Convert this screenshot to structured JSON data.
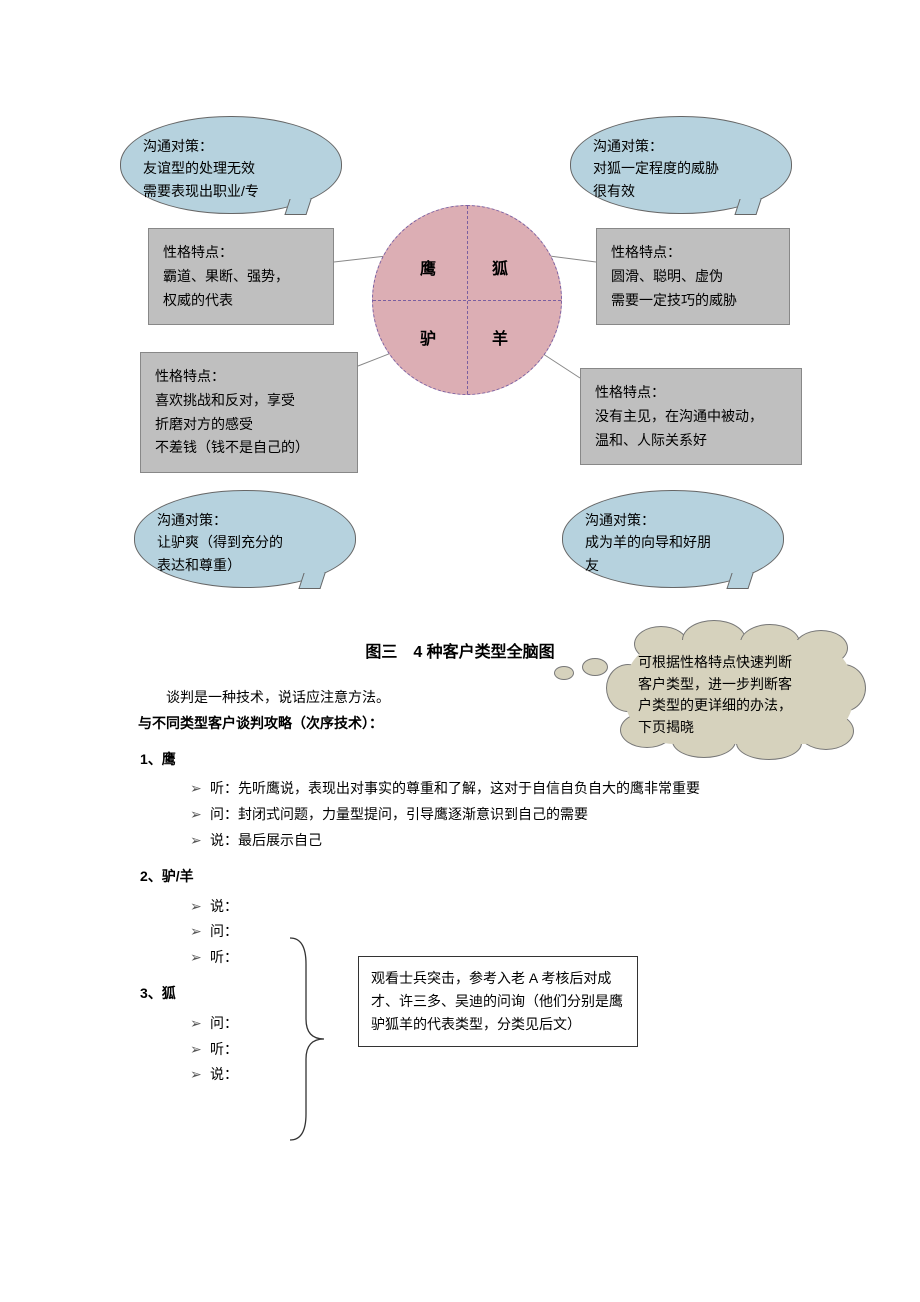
{
  "colors": {
    "bubble_fill": "#b6d2de",
    "box_fill": "#bfbfbf",
    "circle_fill": "#dcaeb4",
    "circle_dash": "#7b5fa0",
    "cloud_fill": "#d6d2bd"
  },
  "bubbles": {
    "tl": {
      "title": "沟通对策：",
      "l1": "友谊型的处理无效",
      "l2": "需要表现出职业/专"
    },
    "tr": {
      "title": "沟通对策：",
      "l1": "对狐一定程度的威胁",
      "l2": "很有效"
    },
    "bl": {
      "title": "沟通对策：",
      "l1": "让驴爽（得到充分的",
      "l2": "表达和尊重）"
    },
    "br": {
      "title": "沟通对策：",
      "l1": "成为羊的向导和好朋",
      "l2": "友"
    }
  },
  "boxes": {
    "tl": {
      "title": "性格特点：",
      "l1": "霸道、果断、强势，",
      "l2": "权威的代表"
    },
    "tr": {
      "title": "性格特点：",
      "l1": "圆滑、聪明、虚伪",
      "l2": "需要一定技巧的威胁"
    },
    "bl": {
      "title": "性格特点：",
      "l1": "喜欢挑战和反对，享受",
      "l2": "折磨对方的感受",
      "l3": "不差钱（钱不是自己的）"
    },
    "br": {
      "title": "性格特点：",
      "l1": "没有主见，在沟通中被动，",
      "l2": "温和、人际关系好"
    }
  },
  "quadrants": {
    "tl": "鹰",
    "tr": "狐",
    "bl": "驴",
    "br": "羊"
  },
  "figure_title": "图三　4 种客户类型全脑图",
  "cloud": {
    "l1": "可根据性格特点快速判断",
    "l2": "客户类型，进一步判断客",
    "l3": "户类型的更详细的办法，",
    "l4": "下页揭晓"
  },
  "intro": {
    "line1": "谈判是一种技术，说话应注意方法。",
    "line2": "与不同类型客户谈判攻略（次序技术）："
  },
  "sections": [
    {
      "num": "1、",
      "label": "鹰",
      "items": [
        "听：先听鹰说，表现出对事实的尊重和了解，这对于自信自负自大的鹰非常重要",
        "问：封闭式问题，力量型提问，引导鹰逐渐意识到自己的需要",
        "说：最后展示自己"
      ]
    },
    {
      "num": "2、",
      "label": "驴/羊",
      "items": [
        "说：",
        "问：",
        "听："
      ]
    },
    {
      "num": "3、",
      "label": "狐",
      "items": [
        "问：",
        "听：",
        "说："
      ]
    }
  ],
  "note_box": "观看士兵突击，参考入老 A 考核后对成才、许三多、吴迪的问询（他们分别是鹰驴狐羊的代表类型，分类见后文）"
}
